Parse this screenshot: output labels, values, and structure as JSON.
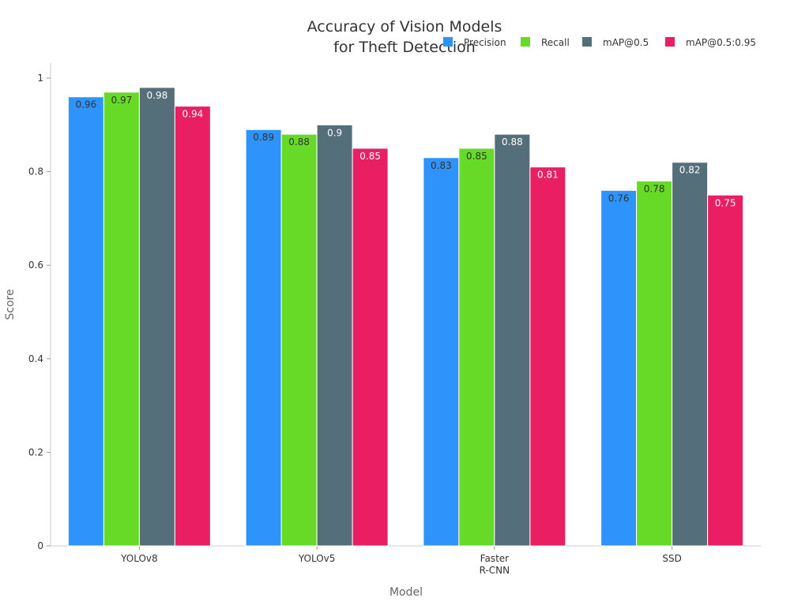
{
  "chart_data": {
    "type": "bar",
    "title": [
      "Accuracy of Vision Models",
      "for Theft Detection"
    ],
    "xlabel": "Model",
    "ylabel": "Score",
    "categories": [
      [
        "YOLOv8"
      ],
      [
        "YOLOv5"
      ],
      [
        "Faster",
        "R-CNN"
      ],
      [
        "SSD"
      ]
    ],
    "ylim": [
      0,
      1
    ],
    "yticks": [
      0,
      0.2,
      0.4,
      0.6,
      0.8,
      1
    ],
    "ytick_labels": [
      "0",
      "0.2",
      "0.4",
      "0.6",
      "0.8",
      "1"
    ],
    "grid": false,
    "legend_position": "top-right",
    "series": [
      {
        "name": "Precision",
        "color": "#2E93FA",
        "label_color": "#333333",
        "values": [
          0.96,
          0.89,
          0.83,
          0.76
        ]
      },
      {
        "name": "Recall",
        "color": "#66DA26",
        "label_color": "#333333",
        "values": [
          0.97,
          0.88,
          0.85,
          0.78
        ]
      },
      {
        "name": "mAP@0.5",
        "color": "#546E7A",
        "label_color": "#ffffff",
        "values": [
          0.98,
          0.9,
          0.88,
          0.82
        ]
      },
      {
        "name": "mAP@0.5:0.95",
        "color": "#E91E63",
        "label_color": "#ffffff",
        "values": [
          0.94,
          0.85,
          0.81,
          0.75
        ]
      }
    ],
    "data_labels": [
      [
        "0.96",
        "0.89",
        "0.83",
        "0.76"
      ],
      [
        "0.97",
        "0.88",
        "0.85",
        "0.78"
      ],
      [
        "0.98",
        "0.9",
        "0.88",
        "0.82"
      ],
      [
        "0.94",
        "0.85",
        "0.81",
        "0.75"
      ]
    ]
  }
}
